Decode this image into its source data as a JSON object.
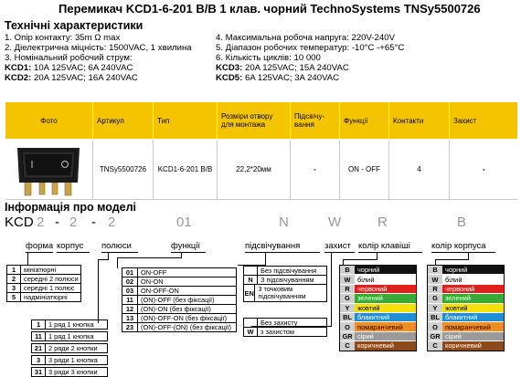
{
  "title": "Перемикач KCD1-6-201 B/B 1 клав. чорний  TechnoSystems TNSy5500726",
  "specs_heading": "Технічні характеристики",
  "specs_left": [
    "1. Опір контакту: 35m Ω  max",
    "2. Діелектрична міцність:  1500VAC, 1 хвилина",
    "3. Номінальний робочий струм:"
  ],
  "kcd1_label": "KCD1:",
  "kcd1_value": " 10A 125VAC; 6A 240VAC",
  "kcd2_label": "KCD2:",
  "kcd2_value": " 20A 125VAC; 16A 240VAC",
  "specs_right": [
    "4. Максимальна робоча напруга: 220V-240V",
    "5. Діапазон робочих температур: -10°С -+65°С",
    "6. Кількість циклів: 10 000"
  ],
  "kcd3_label": "KCD3:",
  "kcd3_value": " 20A 125VAC; 15A 240VAC",
  "kcd5_label": "KCD5:",
  "kcd5_value": " 6A 125VAC; 3A 240VAC",
  "table": {
    "headers": [
      "Фото",
      "Артикул",
      "Тип",
      "Розміри отвору для монтажа",
      "Підсвічу-вання",
      "Функції",
      "Контакти",
      "Захист"
    ],
    "row": [
      "",
      "TNSy5500726",
      "KCD1-6-201 B/B",
      "22,2*20мм",
      "-",
      "ON - OFF",
      "4",
      "-"
    ]
  },
  "info_heading": "Інформація про моделі",
  "code": {
    "kcd": "KCD",
    "p1": "2",
    "d1": "-",
    "p2": "2",
    "d2": "-",
    "p3": "2",
    "p4": "01",
    "p5": "N",
    "p6": "W",
    "p7": "R",
    "p8": "B"
  },
  "labels": {
    "forma": "форма",
    "korpus": "корпус",
    "polyusy": "полюси",
    "funktsii": "функції",
    "pidsvich": "підсвічування",
    "zakhyst": "захист",
    "kolir_klav": "колір клавіші",
    "kolir_korp": "колір корпуса"
  },
  "forma_opts": [
    {
      "k": "1",
      "v": "мініатюрні"
    },
    {
      "k": "2",
      "v": "середні 2 полюси"
    },
    {
      "k": "3",
      "v": "середні 1 полюс"
    },
    {
      "k": "5",
      "v": "надмініатюрні"
    }
  ],
  "polyus_opts": [
    {
      "k": "1",
      "v": "1 ряд 1 кнопка"
    },
    {
      "k": "11",
      "v": "1 ряд 1 кнопка"
    },
    {
      "k": "21",
      "v": "2 ряди 2 кнопки"
    },
    {
      "k": "3",
      "v": "3 ряди 1 кнопка"
    },
    {
      "k": "31",
      "v": "3 ряди 3 кнопки"
    }
  ],
  "func_opts": [
    {
      "k": "01",
      "v": "ON-OFF"
    },
    {
      "k": "02",
      "v": "ON-ON"
    },
    {
      "k": "03",
      "v": "ON-OFF-ON"
    },
    {
      "k": "11",
      "v": "(ON)-OFF (без фіксації)"
    },
    {
      "k": "12",
      "v": "(ON)-ON (без фіксації)"
    },
    {
      "k": "13",
      "v": "(ON)-OFF-ON (без фіксації)"
    },
    {
      "k": "23",
      "v": "(ON)-OFF-(ON) (без фіксації)"
    }
  ],
  "light_opts": [
    {
      "k": "",
      "v": "Без підсвічування"
    },
    {
      "k": "N",
      "v": "З підсвічуванням"
    },
    {
      "k": "EN",
      "v": "3 точковим підсвічуванням"
    }
  ],
  "protect_opts": [
    {
      "k": "",
      "v": "Без захисту"
    },
    {
      "k": "W",
      "v": "з захистом"
    }
  ],
  "colors": [
    {
      "k": "B",
      "v": "чорний",
      "bg": "#111111",
      "fg": "#ffffff"
    },
    {
      "k": "W",
      "v": "білий",
      "bg": "#ffffff",
      "fg": "#000000"
    },
    {
      "k": "R",
      "v": "червоний",
      "bg": "#e0201b",
      "fg": "#ffffff"
    },
    {
      "k": "G",
      "v": "зелений",
      "bg": "#3aa935",
      "fg": "#ffffff"
    },
    {
      "k": "Y",
      "v": "жовтий",
      "bg": "#f5e100",
      "fg": "#000000"
    },
    {
      "k": "BL",
      "v": "блакитний",
      "bg": "#1d8fd6",
      "fg": "#ffffff"
    },
    {
      "k": "O",
      "v": "помаранчевий",
      "bg": "#f28c1c",
      "fg": "#000000"
    },
    {
      "k": "GR",
      "v": "сірий",
      "bg": "#9a9a9a",
      "fg": "#ffffff"
    },
    {
      "k": "C",
      "v": "коричневий",
      "bg": "#8a4a1c",
      "fg": "#ffffff"
    }
  ],
  "accent": "#f5c400"
}
